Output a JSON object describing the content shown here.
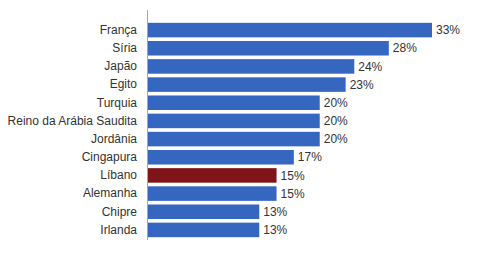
{
  "chart_data": {
    "type": "bar",
    "orientation": "horizontal",
    "categories": [
      "França",
      "Síria",
      "Japão",
      "Egito",
      "Turquia",
      "Reino da Arábia Saudita",
      "Jordânia",
      "Cingapura",
      "Líbano",
      "Alemanha",
      "Chipre",
      "Irlanda"
    ],
    "values": [
      33,
      28,
      24,
      23,
      20,
      20,
      20,
      17,
      15,
      15,
      13,
      13
    ],
    "value_labels": [
      "33%",
      "28%",
      "24%",
      "23%",
      "20%",
      "20%",
      "20%",
      "17%",
      "15%",
      "15%",
      "13%",
      "13%"
    ],
    "colors": [
      "#3566c0",
      "#3566c0",
      "#3566c0",
      "#3566c0",
      "#3566c0",
      "#3566c0",
      "#3566c0",
      "#3566c0",
      "#7f1518",
      "#3566c0",
      "#3566c0",
      "#3566c0"
    ],
    "xlim": [
      0,
      33
    ],
    "data_labels": true,
    "tick_labels": "y",
    "grid": false
  }
}
